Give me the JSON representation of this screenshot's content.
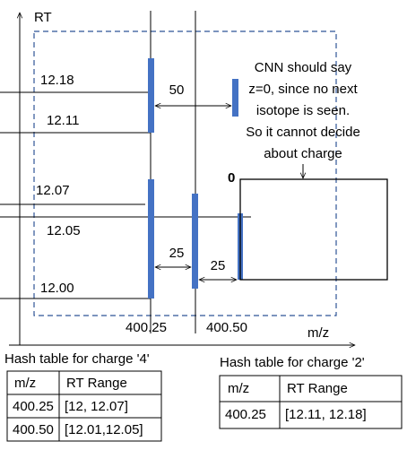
{
  "axes": {
    "y_label": "RT",
    "x_label": "m/z"
  },
  "rt_labels": [
    "12.18",
    "12.11",
    "12.07",
    "12.05",
    "12.00"
  ],
  "mz_labels": [
    "400.25",
    "400.50"
  ],
  "distances": [
    "50",
    "25",
    "25"
  ],
  "note": [
    "CNN should say",
    "z=0, since no next",
    "isotope is seen.",
    "So it cannot decide",
    "about charge"
  ],
  "zero_label": "0",
  "tables": [
    {
      "caption": "Hash table for charge '4'",
      "header": [
        "m/z",
        "RT Range"
      ],
      "rows": [
        [
          "400.25",
          "[12, 12.07]"
        ],
        [
          "400.50",
          "[12.01,12.05]"
        ]
      ]
    },
    {
      "caption": "Hash table for charge '2'",
      "header": [
        "m/z",
        "RT Range"
      ],
      "rows": [
        [
          "400.25",
          "[12.11, 12.18]"
        ]
      ]
    }
  ]
}
